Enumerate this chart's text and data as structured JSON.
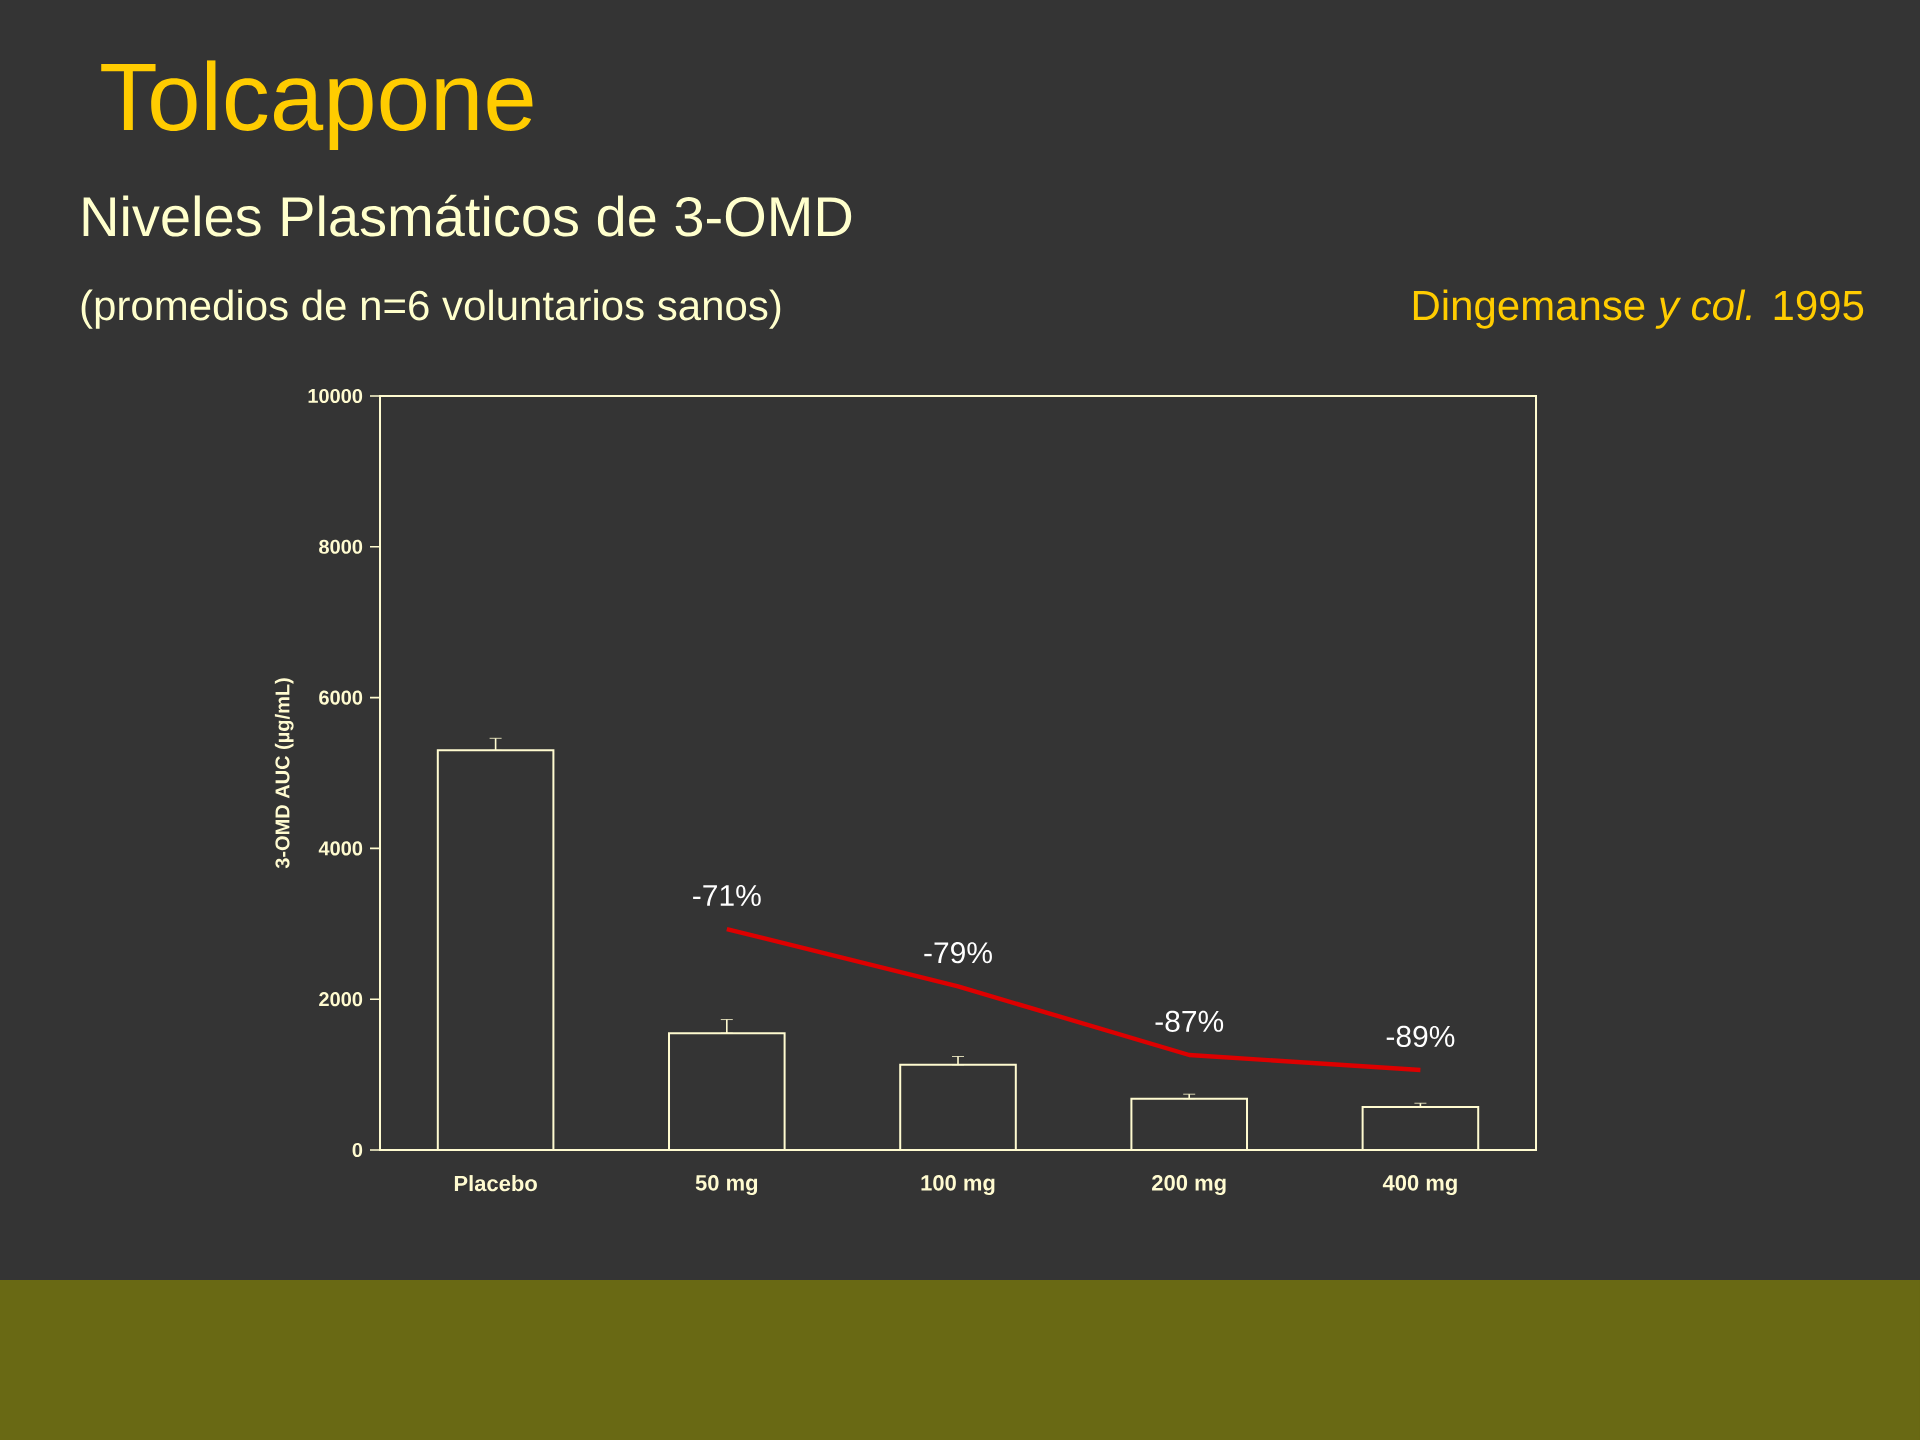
{
  "chart_data": {
    "type": "bar",
    "title": "Tolcapone",
    "subtitle": "Niveles Plasmáticos de 3-OMD",
    "annotations": [
      "(promedios de n=6  voluntarios sanos)",
      "Dingemanse *y col.* 1995",
      {
        "text": "-71%",
        "x": "50 mg",
        "y": 2930
      },
      {
        "text": "-79%",
        "x": "100 mg",
        "y": 2170
      },
      {
        "text": "-87%",
        "x": "200 mg",
        "y": 1260
      },
      {
        "text": "-89%",
        "x": "400 mg",
        "y": 1060
      }
    ],
    "ylabel": "3-OMD AUC (µg/mL)",
    "categories": [
      "Placebo",
      "50 mg",
      "100 mg",
      "200 mg",
      "400 mg"
    ],
    "ylim": [
      0,
      10000
    ],
    "yticks": [
      0,
      2000,
      4000,
      6000,
      8000,
      10000
    ],
    "series": [
      {
        "color": "#fffbd0",
        "values": [
          5300,
          1550,
          1130,
          680,
          570
        ],
        "errors": [
          [
            5300,
            5460
          ],
          [
            1550,
            1730
          ],
          [
            1130,
            1240
          ],
          [
            680,
            740
          ],
          [
            570,
            620
          ]
        ]
      },
      {
        "type": "line",
        "color": "#dd0000",
        "values": [
          null,
          2930,
          2170,
          1260,
          1060
        ]
      }
    ],
    "grid": false
  }
}
